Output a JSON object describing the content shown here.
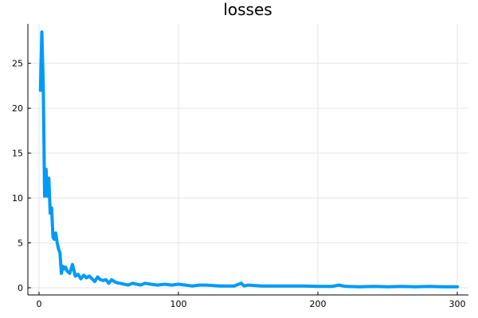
{
  "chart_data": {
    "type": "line",
    "title": "losses",
    "xlabel": "",
    "ylabel": "",
    "xlim": [
      -8,
      308
    ],
    "ylim": [
      -0.8,
      29.4
    ],
    "xticks": [
      0,
      100,
      200,
      300
    ],
    "xtick_labels": [
      "0",
      "100",
      "200",
      "300"
    ],
    "yticks": [
      0,
      5,
      10,
      15,
      20,
      25
    ],
    "ytick_labels": [
      "0",
      "5",
      "10",
      "15",
      "20",
      "25"
    ],
    "grid": true,
    "legend": "none",
    "series_color": "#009af9",
    "series": [
      {
        "x": [
          1,
          2,
          3,
          4,
          5,
          6,
          7,
          8,
          9,
          10,
          11,
          12,
          13,
          14,
          15,
          16,
          17,
          18,
          19,
          20,
          22,
          24,
          26,
          28,
          30,
          32,
          34,
          36,
          38,
          40,
          42,
          44,
          46,
          48,
          50,
          52,
          55,
          58,
          61,
          64,
          67,
          70,
          73,
          76,
          80,
          85,
          90,
          95,
          100,
          105,
          110,
          115,
          120,
          130,
          140,
          145,
          147,
          150,
          160,
          170,
          180,
          190,
          200,
          210,
          215,
          220,
          230,
          240,
          250,
          260,
          270,
          280,
          290,
          300
        ],
        "y": [
          22,
          28.5,
          22.5,
          10.2,
          13.2,
          10.2,
          12.2,
          8.3,
          8.9,
          5.6,
          5.4,
          6.1,
          5.0,
          4.3,
          3.9,
          1.6,
          2.4,
          2.1,
          2.3,
          1.9,
          1.6,
          2.6,
          1.3,
          1.5,
          1.0,
          1.4,
          1.1,
          1.3,
          1.0,
          0.7,
          1.2,
          0.9,
          0.8,
          0.9,
          0.5,
          0.9,
          0.6,
          0.5,
          0.4,
          0.3,
          0.5,
          0.4,
          0.3,
          0.5,
          0.4,
          0.3,
          0.4,
          0.3,
          0.4,
          0.3,
          0.2,
          0.3,
          0.3,
          0.2,
          0.2,
          0.5,
          0.2,
          0.3,
          0.2,
          0.2,
          0.2,
          0.2,
          0.15,
          0.15,
          0.3,
          0.15,
          0.1,
          0.15,
          0.1,
          0.15,
          0.1,
          0.15,
          0.1,
          0.1
        ]
      }
    ]
  }
}
